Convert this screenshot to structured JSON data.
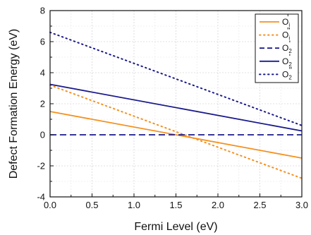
{
  "chart_data": {
    "type": "line",
    "xlabel": "Fermi Level (eV)",
    "ylabel": "Defect Formation Energy (eV)",
    "xlim": [
      0.0,
      3.0
    ],
    "ylim": [
      -4,
      8
    ],
    "xticks": [
      "0.0",
      "0.5",
      "1.0",
      "1.5",
      "2.0",
      "2.5",
      "3.0"
    ],
    "yticks": [
      "-4",
      "-2",
      "0",
      "2",
      "4",
      "6",
      "8"
    ],
    "grid": true,
    "legend_position": "top-right",
    "series": [
      {
        "name_main": "O",
        "name_sub": "i",
        "name_sup": "'",
        "color": "#f5901e",
        "style": "solid",
        "x": [
          0.0,
          3.0
        ],
        "y": [
          1.5,
          -1.5
        ]
      },
      {
        "name_main": "O",
        "name_sub": "i",
        "name_sup": "\"",
        "color": "#f5901e",
        "style": "dotted",
        "x": [
          0.0,
          3.0
        ],
        "y": [
          3.2,
          -2.8
        ]
      },
      {
        "name_main": "O",
        "name_sub": "2",
        "name_sup": "'",
        "color": "#1a1a8c",
        "style": "dashed",
        "x": [
          0.0,
          3.0
        ],
        "y": [
          0.0,
          0.0
        ]
      },
      {
        "name_main": "O",
        "name_sub": "2",
        "name_sup": "'",
        "color": "#1a1a8c",
        "style": "solid",
        "x": [
          0.0,
          3.0
        ],
        "y": [
          3.25,
          0.25
        ]
      },
      {
        "name_main": "O",
        "name_sub": "2",
        "name_sup": "\"",
        "color": "#1a1a8c",
        "style": "dotted",
        "x": [
          0.0,
          3.0
        ],
        "y": [
          6.6,
          0.6
        ]
      }
    ]
  }
}
